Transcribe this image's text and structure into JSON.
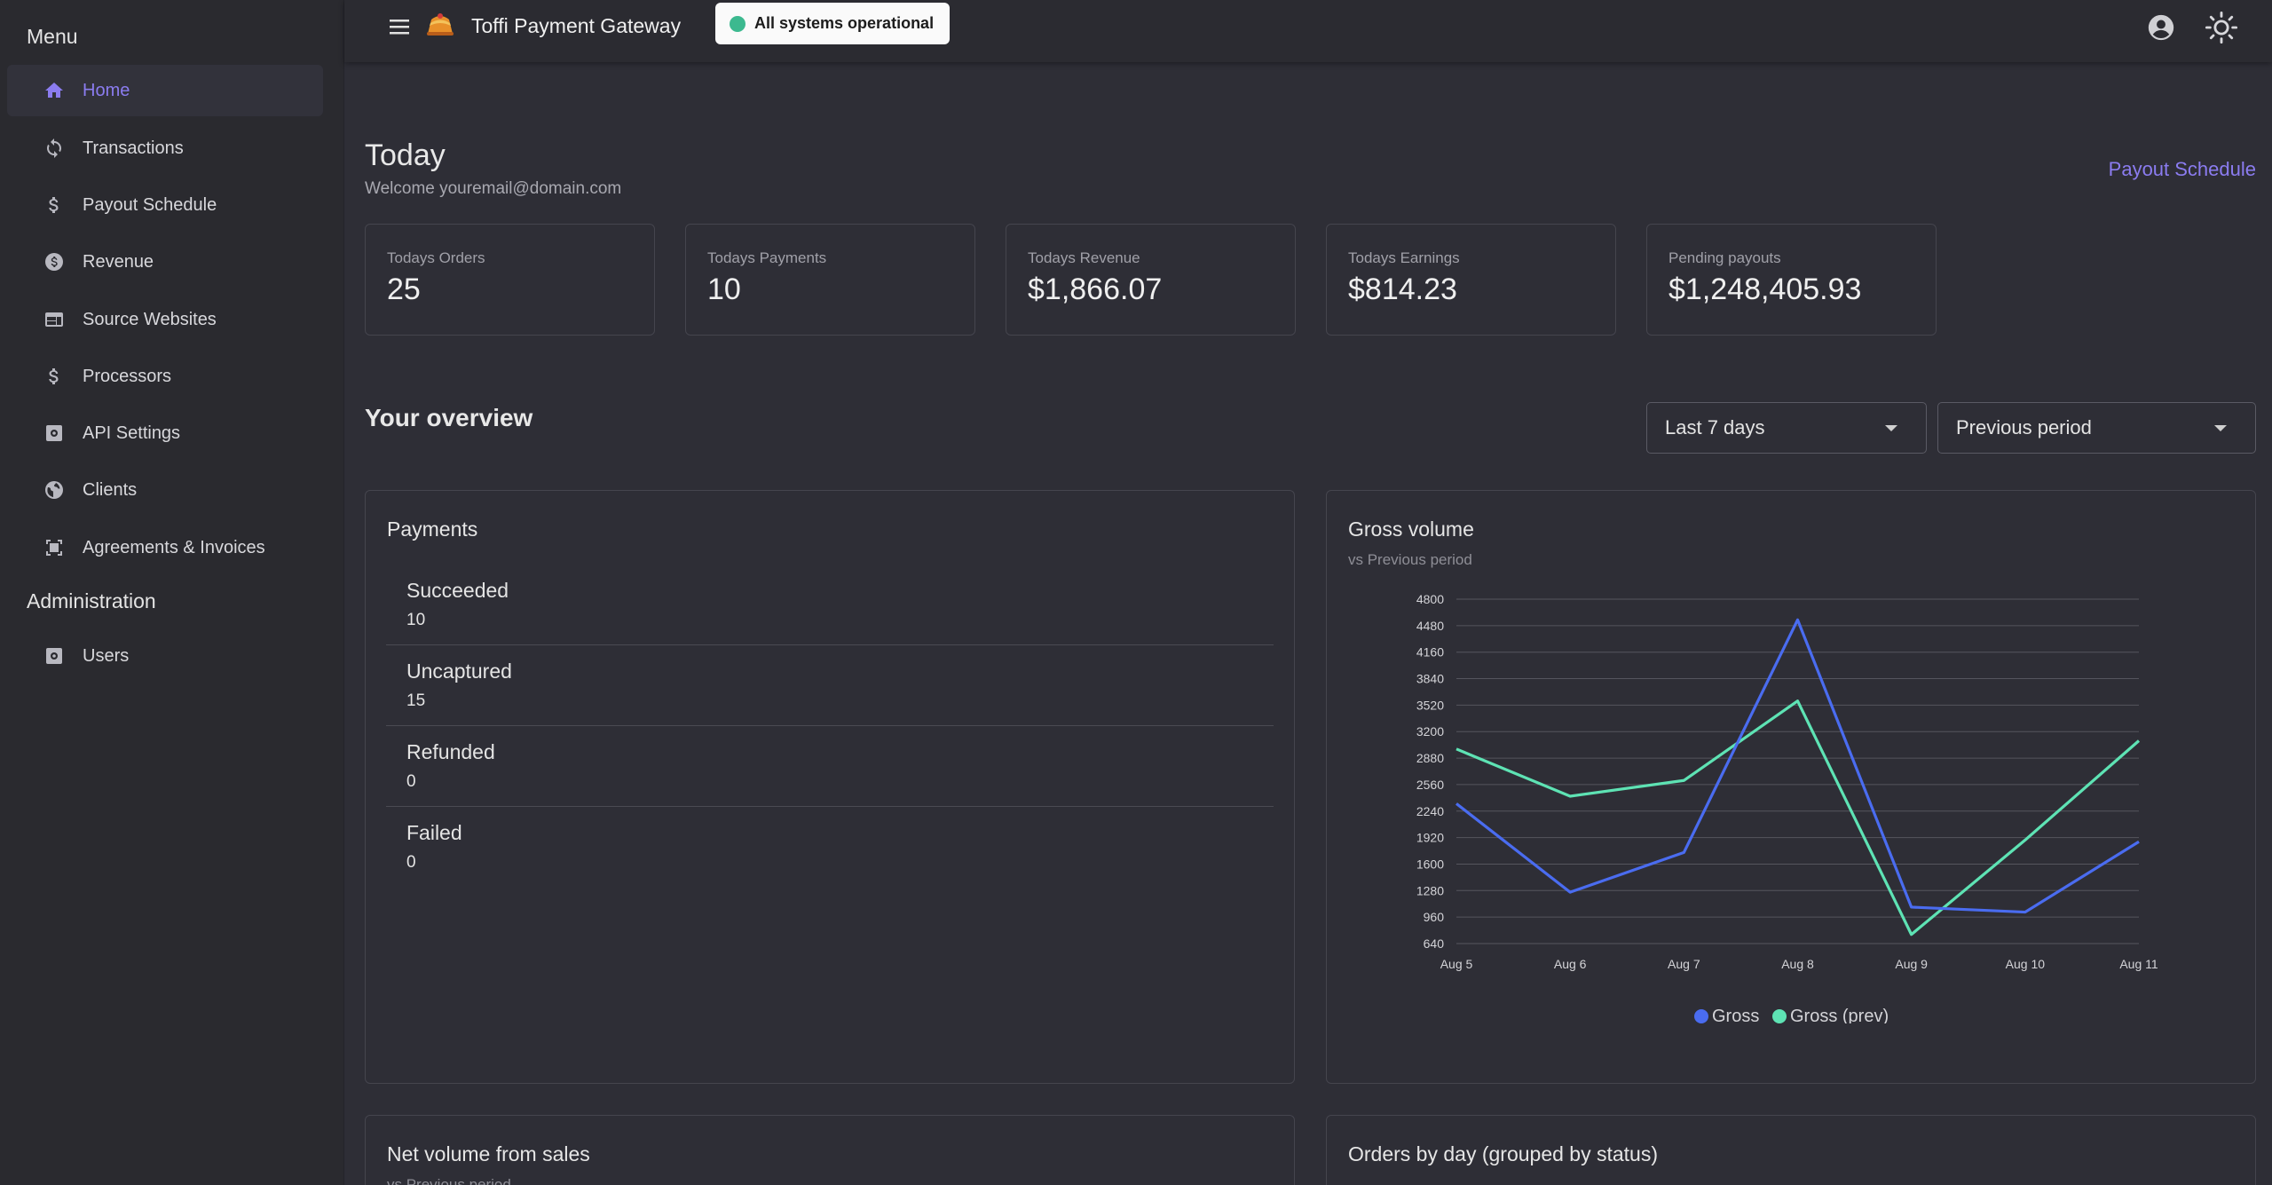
{
  "sidebar": {
    "menu_heading": "Menu",
    "admin_heading": "Administration",
    "items": [
      {
        "label": "Home",
        "icon": "home-icon"
      },
      {
        "label": "Transactions",
        "icon": "sync-icon"
      },
      {
        "label": "Payout Schedule",
        "icon": "dollar-icon"
      },
      {
        "label": "Revenue",
        "icon": "coin-icon"
      },
      {
        "label": "Source Websites",
        "icon": "web-icon"
      },
      {
        "label": "Processors",
        "icon": "dollar-icon"
      },
      {
        "label": "API Settings",
        "icon": "settings-box-icon"
      },
      {
        "label": "Clients",
        "icon": "globe-icon"
      },
      {
        "label": "Agreements & Invoices",
        "icon": "document-scan-icon"
      }
    ],
    "admin_items": [
      {
        "label": "Users",
        "icon": "settings-box-icon"
      }
    ]
  },
  "topbar": {
    "title": "Toffi Payment Gateway",
    "status": "All systems operational"
  },
  "today": {
    "title": "Today",
    "welcome": "Welcome youremail@domain.com",
    "payout_link": "Payout Schedule",
    "stats": [
      {
        "label": "Todays Orders",
        "value": "25"
      },
      {
        "label": "Todays Payments",
        "value": "10"
      },
      {
        "label": "Todays Revenue",
        "value": "$1,866.07"
      },
      {
        "label": "Todays Earnings",
        "value": "$814.23"
      },
      {
        "label": "Pending payouts",
        "value": "$1,248,405.93"
      }
    ]
  },
  "overview": {
    "title": "Your overview",
    "range_select": "Last 7 days",
    "compare_select": "Previous period"
  },
  "payments": {
    "title": "Payments",
    "rows": [
      {
        "name": "Succeeded",
        "count": "10"
      },
      {
        "name": "Uncaptured",
        "count": "15"
      },
      {
        "name": "Refunded",
        "count": "0"
      },
      {
        "name": "Failed",
        "count": "0"
      }
    ]
  },
  "gross": {
    "title": "Gross volume",
    "subtitle": "vs Previous period"
  },
  "net": {
    "title": "Net volume from sales",
    "subtitle": "vs Previous period"
  },
  "orders": {
    "title": "Orders by day (grouped by status)"
  },
  "colors": {
    "accent": "#8b7cf0",
    "gross": "#4a6cf0",
    "gross_prev": "#5ee3b4",
    "status_ok": "#3cb98f"
  },
  "chart_data": {
    "type": "line",
    "title": "Gross volume",
    "subtitle": "vs Previous period",
    "categories": [
      "Aug 5",
      "Aug 6",
      "Aug 7",
      "Aug 8",
      "Aug 9",
      "Aug 10",
      "Aug 11"
    ],
    "series": [
      {
        "name": "Gross",
        "values": [
          2330,
          1260,
          1740,
          4550,
          1080,
          1020,
          1870
        ]
      },
      {
        "name": "Gross (prev)",
        "values": [
          2990,
          2420,
          2610,
          3570,
          750,
          1890,
          3090
        ]
      }
    ],
    "yticks": [
      640,
      960,
      1280,
      1600,
      1920,
      2240,
      2560,
      2880,
      3200,
      3520,
      3840,
      4160,
      4480,
      4800
    ],
    "ylim": [
      640,
      4800
    ],
    "grid": true,
    "legend": "bottom"
  }
}
